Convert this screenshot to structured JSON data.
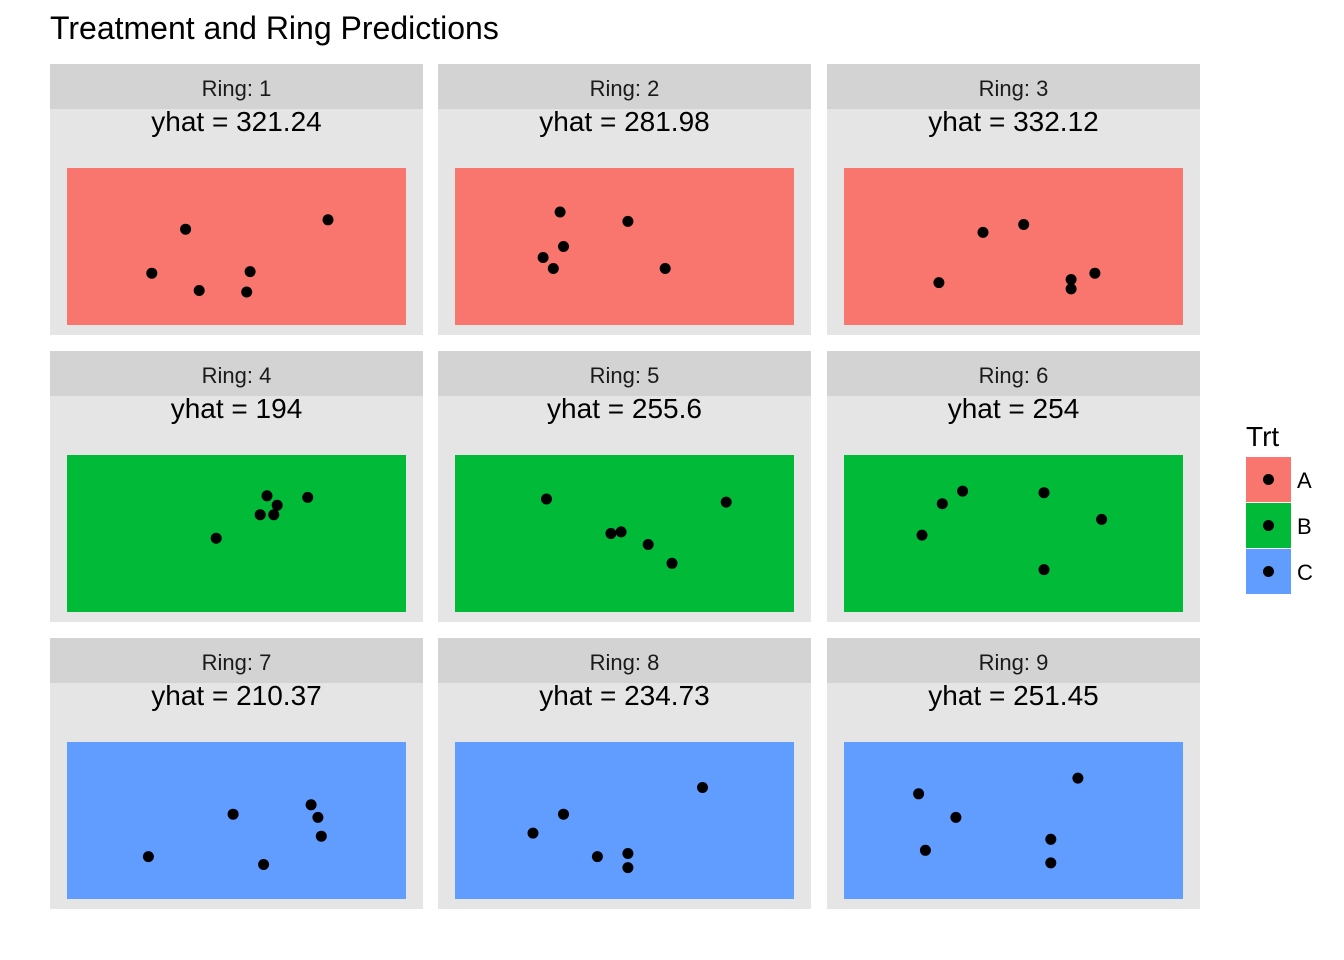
{
  "chart_data": {
    "type": "scatter",
    "title": "Treatment and Ring Predictions",
    "facet_label_prefix": "Ring: ",
    "yhat_label_prefix": "yhat = ",
    "legend": {
      "title": "Trt",
      "placement": "right",
      "entries": [
        {
          "label": "A",
          "color": "#F8766D"
        },
        {
          "label": "B",
          "color": "#00BA38"
        },
        {
          "label": "C",
          "color": "#619CFF"
        }
      ]
    },
    "panel_background": "#E5E5E5",
    "strip_background": "#D3D3D3",
    "x_range": [
      0,
      1
    ],
    "y_range": [
      0,
      1
    ],
    "axes_shown": false,
    "grid": false,
    "panels": [
      {
        "ring": "1",
        "trt": "A",
        "yhat": "321.24",
        "points": [
          [
            0.25,
            0.33
          ],
          [
            0.35,
            0.61
          ],
          [
            0.39,
            0.22
          ],
          [
            0.53,
            0.21
          ],
          [
            0.54,
            0.34
          ],
          [
            0.77,
            0.67
          ]
        ]
      },
      {
        "ring": "2",
        "trt": "A",
        "yhat": "281.98",
        "points": [
          [
            0.26,
            0.43
          ],
          [
            0.29,
            0.36
          ],
          [
            0.31,
            0.72
          ],
          [
            0.32,
            0.5
          ],
          [
            0.51,
            0.66
          ],
          [
            0.62,
            0.36
          ]
        ]
      },
      {
        "ring": "3",
        "trt": "A",
        "yhat": "332.12",
        "points": [
          [
            0.28,
            0.27
          ],
          [
            0.41,
            0.59
          ],
          [
            0.53,
            0.64
          ],
          [
            0.67,
            0.29
          ],
          [
            0.67,
            0.23
          ],
          [
            0.74,
            0.33
          ]
        ]
      },
      {
        "ring": "4",
        "trt": "B",
        "yhat": "194",
        "points": [
          [
            0.44,
            0.47
          ],
          [
            0.57,
            0.62
          ],
          [
            0.59,
            0.74
          ],
          [
            0.61,
            0.62
          ],
          [
            0.62,
            0.68
          ],
          [
            0.71,
            0.73
          ]
        ]
      },
      {
        "ring": "5",
        "trt": "B",
        "yhat": "255.6",
        "points": [
          [
            0.27,
            0.72
          ],
          [
            0.46,
            0.5
          ],
          [
            0.49,
            0.51
          ],
          [
            0.57,
            0.43
          ],
          [
            0.64,
            0.31
          ],
          [
            0.8,
            0.7
          ]
        ]
      },
      {
        "ring": "6",
        "trt": "B",
        "yhat": "254",
        "points": [
          [
            0.23,
            0.49
          ],
          [
            0.29,
            0.69
          ],
          [
            0.35,
            0.77
          ],
          [
            0.59,
            0.76
          ],
          [
            0.59,
            0.27
          ],
          [
            0.76,
            0.59
          ]
        ]
      },
      {
        "ring": "7",
        "trt": "C",
        "yhat": "210.37",
        "points": [
          [
            0.24,
            0.27
          ],
          [
            0.49,
            0.54
          ],
          [
            0.58,
            0.22
          ],
          [
            0.72,
            0.6
          ],
          [
            0.74,
            0.52
          ],
          [
            0.75,
            0.4
          ]
        ]
      },
      {
        "ring": "8",
        "trt": "C",
        "yhat": "234.73",
        "points": [
          [
            0.23,
            0.42
          ],
          [
            0.32,
            0.54
          ],
          [
            0.42,
            0.27
          ],
          [
            0.51,
            0.29
          ],
          [
            0.51,
            0.2
          ],
          [
            0.73,
            0.71
          ]
        ]
      },
      {
        "ring": "9",
        "trt": "C",
        "yhat": "251.45",
        "points": [
          [
            0.22,
            0.67
          ],
          [
            0.24,
            0.31
          ],
          [
            0.33,
            0.52
          ],
          [
            0.61,
            0.38
          ],
          [
            0.61,
            0.23
          ],
          [
            0.69,
            0.77
          ]
        ]
      }
    ]
  }
}
